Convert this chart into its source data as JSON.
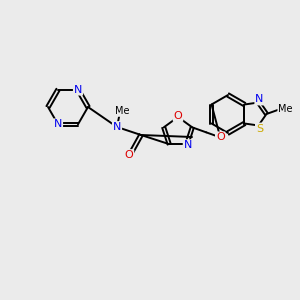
{
  "background_color": "#ebebeb",
  "atom_colors": {
    "N": "#0000ee",
    "O": "#dd0000",
    "S": "#ccaa00",
    "C": "#000000"
  },
  "bond_color": "#000000",
  "figsize": [
    3.0,
    3.0
  ],
  "dpi": 100
}
